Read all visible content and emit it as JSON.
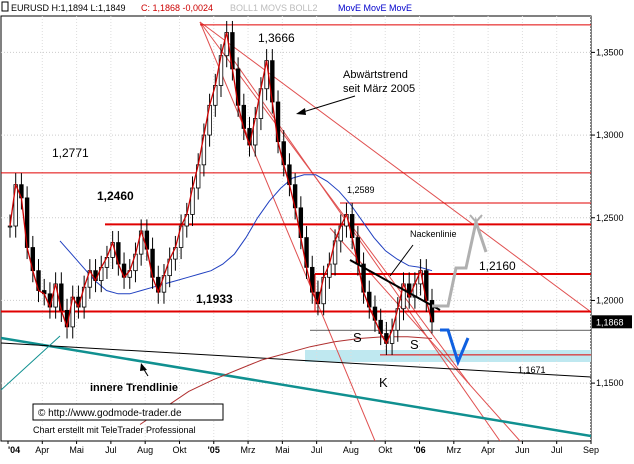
{
  "header": {
    "symbol_info": "EURUSD H:1,1894 L:1,1849",
    "close_info": "C: 1,1868 -0,0024",
    "indicators_inactive": "BOLL1 MOVS BOLL2",
    "indicators_active": "MovE MovE MovE"
  },
  "colors": {
    "candle": "#000000",
    "price_line": "#cc0000",
    "upper_band": "#2040c0",
    "lower_band": "#b03030",
    "trend_line_thin": "#e05050",
    "support_level": "#e00000",
    "inner_trendline": "#109090",
    "forecast_grey": "#b0b0b0",
    "forecast_blue": "#1060e0",
    "highlight_band": "#bfe8f0",
    "text_red": "#cc0000",
    "text_blue": "#0000cc"
  },
  "chart_data": {
    "type": "candlestick",
    "ylim": [
      1.115,
      1.372
    ],
    "x_ticks": [
      "'04",
      "Apr",
      "Mai",
      "Jul",
      "Aug",
      "Okt",
      "'05",
      "Mrz",
      "Mai",
      "Jul",
      "Aug",
      "Okt",
      "'06",
      "Mrz",
      "Apr",
      "Jun",
      "Jul",
      "Sep"
    ],
    "y_ticks": [
      "1,3500",
      "1,3000",
      "1,2500",
      "1,2000",
      "1,1500"
    ],
    "y_tick_values": [
      1.35,
      1.3,
      1.25,
      1.2,
      1.15
    ],
    "last_price_label": "1,1868",
    "last_price": 1.1868,
    "price_series": [
      1.245,
      1.27,
      1.262,
      1.232,
      1.218,
      1.206,
      1.204,
      1.196,
      1.21,
      1.194,
      1.184,
      1.202,
      1.196,
      1.208,
      1.218,
      1.212,
      1.22,
      1.226,
      1.235,
      1.222,
      1.214,
      1.218,
      1.228,
      1.242,
      1.231,
      1.214,
      1.205,
      1.215,
      1.225,
      1.232,
      1.245,
      1.252,
      1.268,
      1.282,
      1.3,
      1.318,
      1.33,
      1.348,
      1.362,
      1.34,
      1.318,
      1.304,
      1.294,
      1.31,
      1.328,
      1.345,
      1.32,
      1.296,
      1.282,
      1.27,
      1.256,
      1.238,
      1.22,
      1.205,
      1.198,
      1.214,
      1.222,
      1.236,
      1.245,
      1.252,
      1.238,
      1.222,
      1.205,
      1.196,
      1.188,
      1.18,
      1.174,
      1.182,
      1.195,
      1.21,
      1.202,
      1.21,
      1.218,
      1.2,
      1.187
    ],
    "upper_band_series": [
      1.236,
      1.228,
      1.22,
      1.212,
      1.206,
      1.204,
      1.204,
      1.206,
      1.208,
      1.21,
      1.212,
      1.214,
      1.216,
      1.218,
      1.222,
      1.228,
      1.238,
      1.25,
      1.26,
      1.268,
      1.274,
      1.276,
      1.276,
      1.272,
      1.266,
      1.258,
      1.248,
      1.238,
      1.23,
      1.225,
      1.221,
      1.22,
      1.218
    ],
    "lower_band_series": [
      1.125,
      1.135,
      1.145,
      1.152,
      1.158,
      1.164,
      1.168,
      1.172,
      1.175,
      1.177,
      1.178,
      1.178,
      1.177
    ],
    "horizontal_levels": [
      {
        "label": "1,3666",
        "value": 1.3666
      },
      {
        "label": "1,2771",
        "value": 1.2771
      },
      {
        "label": "1,2589",
        "value": 1.2589
      },
      {
        "label": "1,2460",
        "value": 1.246
      },
      {
        "label": "1,2160",
        "value": 1.216
      },
      {
        "label": "1,1933",
        "value": 1.1933
      },
      {
        "label": "1,1671",
        "value": 1.1671
      }
    ],
    "annotations": {
      "downtrend": "Abwärtstrend",
      "downtrend_since": "seit März 2005",
      "neckline": "Nackenlinie",
      "shoulder_left": "S",
      "shoulder_right": "S",
      "head": "K",
      "inner_trendline": "innere Trendlinie"
    },
    "grid": true
  },
  "footer": {
    "copyright": "© http://www.godmode-trader.de",
    "created_with": "Chart erstellt mit TeleTrader Professional"
  }
}
